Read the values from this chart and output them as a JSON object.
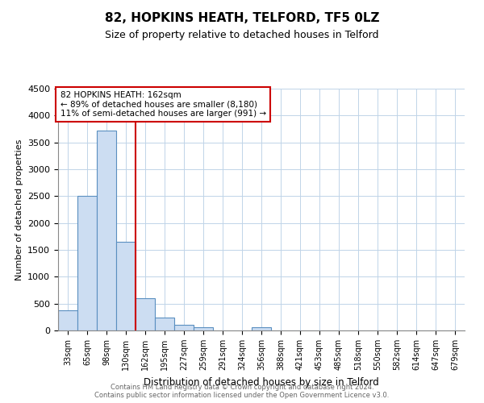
{
  "title": "82, HOPKINS HEATH, TELFORD, TF5 0LZ",
  "subtitle": "Size of property relative to detached houses in Telford",
  "xlabel": "Distribution of detached houses by size in Telford",
  "ylabel": "Number of detached properties",
  "bar_labels": [
    "33sqm",
    "65sqm",
    "98sqm",
    "130sqm",
    "162sqm",
    "195sqm",
    "227sqm",
    "259sqm",
    "291sqm",
    "324sqm",
    "356sqm",
    "388sqm",
    "421sqm",
    "453sqm",
    "485sqm",
    "518sqm",
    "550sqm",
    "582sqm",
    "614sqm",
    "647sqm",
    "679sqm"
  ],
  "bar_values": [
    380,
    2500,
    3720,
    1650,
    600,
    245,
    110,
    55,
    0,
    0,
    55,
    0,
    0,
    0,
    0,
    0,
    0,
    0,
    0,
    0,
    0
  ],
  "bar_color": "#ccddf2",
  "bar_edge_color": "#5a8fc0",
  "vline_x_index": 4,
  "vline_color": "#cc0000",
  "ylim": [
    0,
    4500
  ],
  "yticks": [
    0,
    500,
    1000,
    1500,
    2000,
    2500,
    3000,
    3500,
    4000,
    4500
  ],
  "annotation_box_text": "82 HOPKINS HEATH: 162sqm\n← 89% of detached houses are smaller (8,180)\n11% of semi-detached houses are larger (991) →",
  "annotation_box_color": "#ffffff",
  "annotation_box_edge": "#cc0000",
  "footer_line1": "Contains HM Land Registry data © Crown copyright and database right 2024.",
  "footer_line2": "Contains public sector information licensed under the Open Government Licence v3.0.",
  "bg_color": "#ffffff",
  "grid_color": "#c0d4e8"
}
